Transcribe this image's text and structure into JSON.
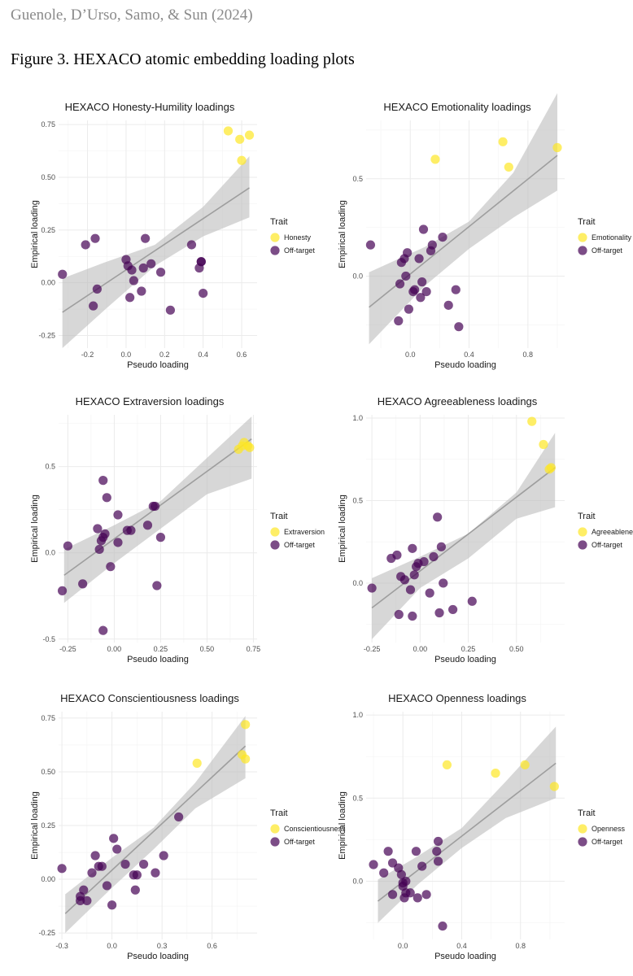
{
  "header": {
    "authors": "Guenole, D’Urso, Samo, & Sun (2024)",
    "figure_caption": "Figure 3. HEXACO atomic embedding loading plots"
  },
  "colors": {
    "target": "#fde725",
    "offtarget": "#440154",
    "ribbon": "#bdbdbd",
    "fit": "#9e9e9e",
    "grid": "#ebebeb"
  },
  "chart_data": [
    {
      "type": "scatter",
      "title": "HEXACO Honesty-Humility loadings",
      "xlabel": "Pseudo loading",
      "ylabel": "Empirical loading",
      "xlim": [
        -0.35,
        0.68
      ],
      "ylim": [
        -0.31,
        0.77
      ],
      "xticks": [
        -0.2,
        0.0,
        0.2,
        0.4,
        0.6
      ],
      "xtick_labels": [
        "-0.2",
        "0.0",
        "0.2",
        "0.4",
        "0.6"
      ],
      "yticks": [
        -0.25,
        0.0,
        0.25,
        0.5,
        0.75
      ],
      "ytick_labels": [
        "-0.25",
        "0.00",
        "0.25",
        "0.50",
        "0.75"
      ],
      "legend_title": "Trait",
      "target_label": "Honesty",
      "offtarget_label": "Off-target",
      "fit": {
        "x": [
          -0.33,
          0.64
        ],
        "y": [
          -0.14,
          0.45
        ]
      },
      "ribbon": {
        "x": [
          -0.33,
          -0.1,
          0.15,
          0.4,
          0.64
        ],
        "lower": [
          -0.31,
          -0.12,
          0.08,
          0.22,
          0.31
        ],
        "upper": [
          0.02,
          0.1,
          0.18,
          0.36,
          0.6
        ]
      },
      "target": {
        "x": [
          0.53,
          0.59,
          0.6,
          0.64
        ],
        "y": [
          0.72,
          0.68,
          0.58,
          0.7
        ]
      },
      "offtarget": {
        "x": [
          -0.33,
          -0.21,
          -0.16,
          -0.15,
          -0.17,
          0.0,
          0.01,
          0.03,
          0.04,
          0.09,
          0.1,
          0.13,
          0.18,
          0.34,
          0.38,
          0.39,
          0.39,
          0.02,
          0.08,
          0.23,
          0.4
        ],
        "y": [
          0.04,
          0.18,
          0.21,
          -0.03,
          -0.11,
          0.11,
          0.08,
          0.06,
          0.01,
          0.07,
          0.21,
          0.09,
          0.05,
          0.18,
          0.07,
          0.1,
          0.1,
          -0.07,
          -0.04,
          -0.13,
          -0.05
        ]
      }
    },
    {
      "type": "scatter",
      "title": "HEXACO Emotionality loadings",
      "xlabel": "Pseudo loading",
      "ylabel": "Empirical loading",
      "xlim": [
        -0.3,
        1.05
      ],
      "ylim": [
        -0.37,
        0.8
      ],
      "xticks": [
        0.0,
        0.4,
        0.8
      ],
      "xtick_labels": [
        "0.0",
        "0.4",
        "0.8"
      ],
      "yticks": [
        0.0,
        0.5
      ],
      "ytick_labels": [
        "0.0",
        "0.5"
      ],
      "legend_title": "Trait",
      "target_label": "Emotionality",
      "offtarget_label": "Off-target",
      "fit": {
        "x": [
          -0.28,
          1.0
        ],
        "y": [
          -0.16,
          0.62
        ]
      },
      "ribbon": {
        "x": [
          -0.28,
          0.1,
          0.4,
          0.7,
          1.0
        ],
        "lower": [
          -0.35,
          -0.05,
          0.14,
          0.3,
          0.44
        ],
        "upper": [
          0.02,
          0.15,
          0.28,
          0.53,
          0.94
        ]
      },
      "target": {
        "x": [
          0.17,
          0.63,
          0.67,
          1.0
        ],
        "y": [
          0.6,
          0.69,
          0.56,
          0.66
        ]
      },
      "offtarget": {
        "x": [
          -0.27,
          -0.02,
          -0.07,
          -0.06,
          -0.04,
          0.02,
          0.06,
          0.09,
          0.14,
          0.15,
          0.22,
          -0.08,
          -0.01,
          0.03,
          0.07,
          0.08,
          0.11,
          0.26,
          0.31,
          0.33,
          -0.03
        ],
        "y": [
          0.16,
          0.12,
          -0.04,
          0.07,
          0.09,
          -0.08,
          0.09,
          0.24,
          0.13,
          0.16,
          0.2,
          -0.23,
          -0.17,
          -0.07,
          -0.11,
          -0.03,
          -0.08,
          -0.15,
          -0.07,
          -0.26,
          0.0
        ]
      }
    },
    {
      "type": "scatter",
      "title": "HEXACO Extraversion loadings",
      "xlabel": "Pseudo loading",
      "ylabel": "Empirical loading",
      "xlim": [
        -0.3,
        0.77
      ],
      "ylim": [
        -0.52,
        0.8
      ],
      "xticks": [
        -0.25,
        0.0,
        0.25,
        0.5,
        0.75
      ],
      "xtick_labels": [
        "-0.25",
        "0.00",
        "0.25",
        "0.50",
        "0.75"
      ],
      "yticks": [
        -0.5,
        0.0,
        0.5
      ],
      "ytick_labels": [
        "-0.5",
        "0.0",
        "0.5"
      ],
      "legend_title": "Trait",
      "target_label": "Extraversion",
      "offtarget_label": "Off-target",
      "fit": {
        "x": [
          -0.27,
          0.74
        ],
        "y": [
          -0.13,
          0.66
        ]
      },
      "ribbon": {
        "x": [
          -0.27,
          0.0,
          0.25,
          0.5,
          0.74
        ],
        "lower": [
          -0.29,
          -0.06,
          0.14,
          0.34,
          0.43
        ],
        "upper": [
          0.02,
          0.16,
          0.3,
          0.55,
          0.79
        ]
      },
      "target": {
        "x": [
          0.67,
          0.69,
          0.7,
          0.72,
          0.73
        ],
        "y": [
          0.6,
          0.62,
          0.64,
          0.62,
          0.61
        ]
      },
      "offtarget": {
        "x": [
          -0.25,
          -0.28,
          -0.17,
          -0.08,
          -0.07,
          -0.06,
          -0.05,
          -0.04,
          -0.09,
          -0.06,
          -0.02,
          0.02,
          0.07,
          0.09,
          0.18,
          0.21,
          0.22,
          0.25,
          -0.06,
          0.23,
          0.02
        ],
        "y": [
          0.04,
          -0.22,
          -0.18,
          0.02,
          0.07,
          0.09,
          0.11,
          0.32,
          0.14,
          0.42,
          -0.08,
          0.22,
          0.13,
          0.13,
          0.16,
          0.27,
          0.27,
          0.09,
          -0.45,
          -0.19,
          0.06
        ]
      }
    },
    {
      "type": "scatter",
      "title": "HEXACO Agreeableness loadings",
      "xlabel": "Pseudo loading",
      "ylabel": "Empirical loading",
      "xlim": [
        -0.28,
        0.75
      ],
      "ylim": [
        -0.36,
        1.02
      ],
      "xticks": [
        -0.25,
        0.0,
        0.25,
        0.5
      ],
      "xtick_labels": [
        "-0.25",
        "0.00",
        "0.25",
        "0.50"
      ],
      "yticks": [
        0.0,
        0.5,
        1.0
      ],
      "ytick_labels": [
        "0.0",
        "0.5",
        "1.0"
      ],
      "legend_title": "Trait",
      "target_label": "Agreeableness",
      "offtarget_label": "Off-target",
      "fit": {
        "x": [
          -0.25,
          0.7
        ],
        "y": [
          -0.15,
          0.7
        ]
      },
      "ribbon": {
        "x": [
          -0.25,
          0.0,
          0.25,
          0.5,
          0.7
        ],
        "lower": [
          -0.34,
          -0.03,
          0.15,
          0.39,
          0.46
        ],
        "upper": [
          0.03,
          0.16,
          0.3,
          0.55,
          0.91
        ]
      },
      "target": {
        "x": [
          0.58,
          0.64,
          0.67,
          0.68
        ],
        "y": [
          0.98,
          0.84,
          0.69,
          0.7
        ]
      },
      "offtarget": {
        "x": [
          -0.25,
          -0.15,
          -0.12,
          -0.1,
          -0.08,
          -0.05,
          -0.04,
          -0.03,
          -0.02,
          0.02,
          0.07,
          0.09,
          0.11,
          0.12,
          -0.01,
          -0.11,
          -0.04,
          0.05,
          0.1,
          0.17,
          0.27
        ],
        "y": [
          -0.03,
          0.15,
          0.17,
          0.04,
          0.02,
          -0.04,
          0.21,
          0.05,
          0.1,
          0.13,
          0.16,
          0.4,
          0.22,
          0.0,
          0.12,
          -0.19,
          -0.2,
          -0.06,
          -0.18,
          -0.16,
          -0.11
        ]
      }
    },
    {
      "type": "scatter",
      "title": "HEXACO Conscientiousness loadings",
      "xlabel": "Pseudo loading",
      "ylabel": "Empirical loading",
      "xlim": [
        -0.32,
        0.87
      ],
      "ylim": [
        -0.28,
        0.78
      ],
      "xticks": [
        -0.3,
        0.0,
        0.3,
        0.6
      ],
      "xtick_labels": [
        "-0.3",
        "0.0",
        "0.3",
        "0.6"
      ],
      "yticks": [
        -0.25,
        0.0,
        0.25,
        0.5,
        0.75
      ],
      "ytick_labels": [
        "-0.25",
        "0.00",
        "0.25",
        "0.50",
        "0.75"
      ],
      "legend_title": "Trait",
      "target_label": "Conscientiousness",
      "offtarget_label": "Off-target",
      "fit": {
        "x": [
          -0.28,
          0.8
        ],
        "y": [
          -0.16,
          0.62
        ]
      },
      "ribbon": {
        "x": [
          -0.28,
          0.0,
          0.25,
          0.5,
          0.8
        ],
        "lower": [
          -0.25,
          -0.04,
          0.14,
          0.33,
          0.47
        ],
        "upper": [
          -0.07,
          0.1,
          0.24,
          0.45,
          0.76
        ]
      },
      "target": {
        "x": [
          0.51,
          0.78,
          0.8,
          0.8
        ],
        "y": [
          0.54,
          0.58,
          0.56,
          0.72
        ]
      },
      "offtarget": {
        "x": [
          -0.3,
          -0.19,
          -0.17,
          -0.15,
          -0.12,
          -0.1,
          -0.08,
          -0.06,
          -0.03,
          0.01,
          0.03,
          0.08,
          0.13,
          0.14,
          0.15,
          0.19,
          0.26,
          0.31,
          0.4,
          0.0,
          -0.19
        ],
        "y": [
          0.05,
          -0.08,
          -0.05,
          -0.1,
          0.03,
          0.11,
          0.06,
          0.06,
          -0.03,
          0.19,
          0.14,
          0.07,
          0.02,
          -0.05,
          0.02,
          0.07,
          0.03,
          0.11,
          0.29,
          -0.12,
          -0.1
        ]
      }
    },
    {
      "type": "scatter",
      "title": "HEXACO Openness loadings",
      "xlabel": "Pseudo loading",
      "ylabel": "Empirical loading",
      "xlim": [
        -0.25,
        1.1
      ],
      "ylim": [
        -0.35,
        1.02
      ],
      "xticks": [
        0.0,
        0.4,
        0.8
      ],
      "xtick_labels": [
        "0.0",
        "0.4",
        "0.8"
      ],
      "yticks": [
        0.0,
        0.5,
        1.0
      ],
      "ytick_labels": [
        "0.0",
        "0.5",
        "1.0"
      ],
      "legend_title": "Trait",
      "target_label": "Openness",
      "offtarget_label": "Off-target",
      "fit": {
        "x": [
          -0.17,
          1.04
        ],
        "y": [
          -0.12,
          0.71
        ]
      },
      "ribbon": {
        "x": [
          -0.17,
          0.1,
          0.4,
          0.7,
          1.04
        ],
        "lower": [
          -0.25,
          -0.02,
          0.2,
          0.38,
          0.5
        ],
        "upper": [
          0.01,
          0.15,
          0.32,
          0.6,
          0.93
        ]
      },
      "target": {
        "x": [
          0.3,
          0.63,
          0.83,
          1.03
        ],
        "y": [
          0.7,
          0.65,
          0.7,
          0.57
        ]
      },
      "offtarget": {
        "x": [
          -0.2,
          -0.13,
          -0.1,
          -0.07,
          -0.03,
          -0.01,
          0.0,
          0.01,
          0.02,
          0.05,
          0.09,
          0.13,
          0.16,
          0.23,
          0.24,
          0.27,
          0.24,
          -0.07,
          0.02,
          0.1,
          0.0
        ],
        "y": [
          0.1,
          0.05,
          0.18,
          0.11,
          0.08,
          0.04,
          -0.03,
          -0.1,
          -0.07,
          -0.07,
          0.18,
          0.09,
          -0.08,
          0.18,
          0.24,
          -0.27,
          0.12,
          -0.08,
          0.0,
          -0.1,
          -0.01
        ]
      }
    }
  ]
}
